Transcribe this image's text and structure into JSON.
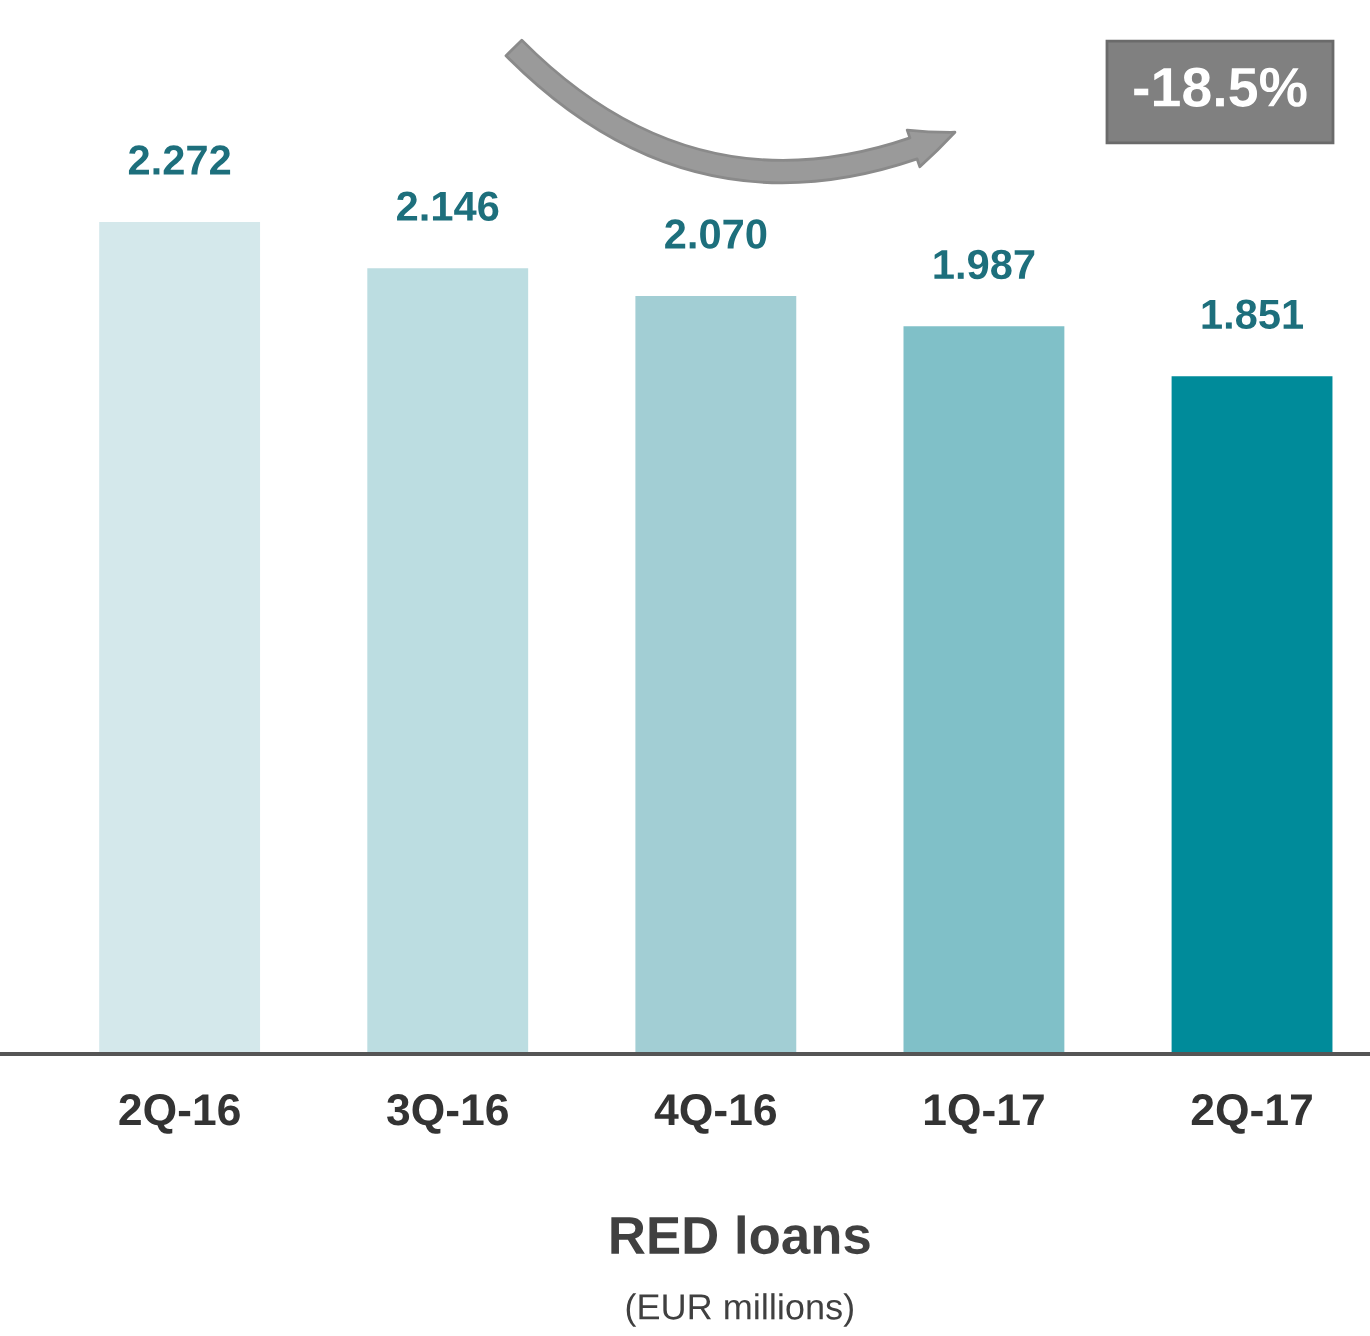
{
  "chart_data": {
    "type": "bar",
    "title": "RED loans",
    "subtitle": "(EUR millions)",
    "categories": [
      "2Q-16",
      "3Q-16",
      "4Q-16",
      "1Q-17",
      "2Q-17"
    ],
    "values": [
      2.272,
      2.146,
      2.07,
      1.987,
      1.851
    ],
    "colors": [
      "#d4e8eb",
      "#bcdde1",
      "#a2ced4",
      "#80c0c8",
      "#008b9a"
    ],
    "value_labels": [
      "2.272",
      "2.146",
      "2.070",
      "1.987",
      "1.851"
    ],
    "tick_labels": "x",
    "grid": false,
    "legend": false,
    "annotations": [
      "-18.5%"
    ]
  }
}
